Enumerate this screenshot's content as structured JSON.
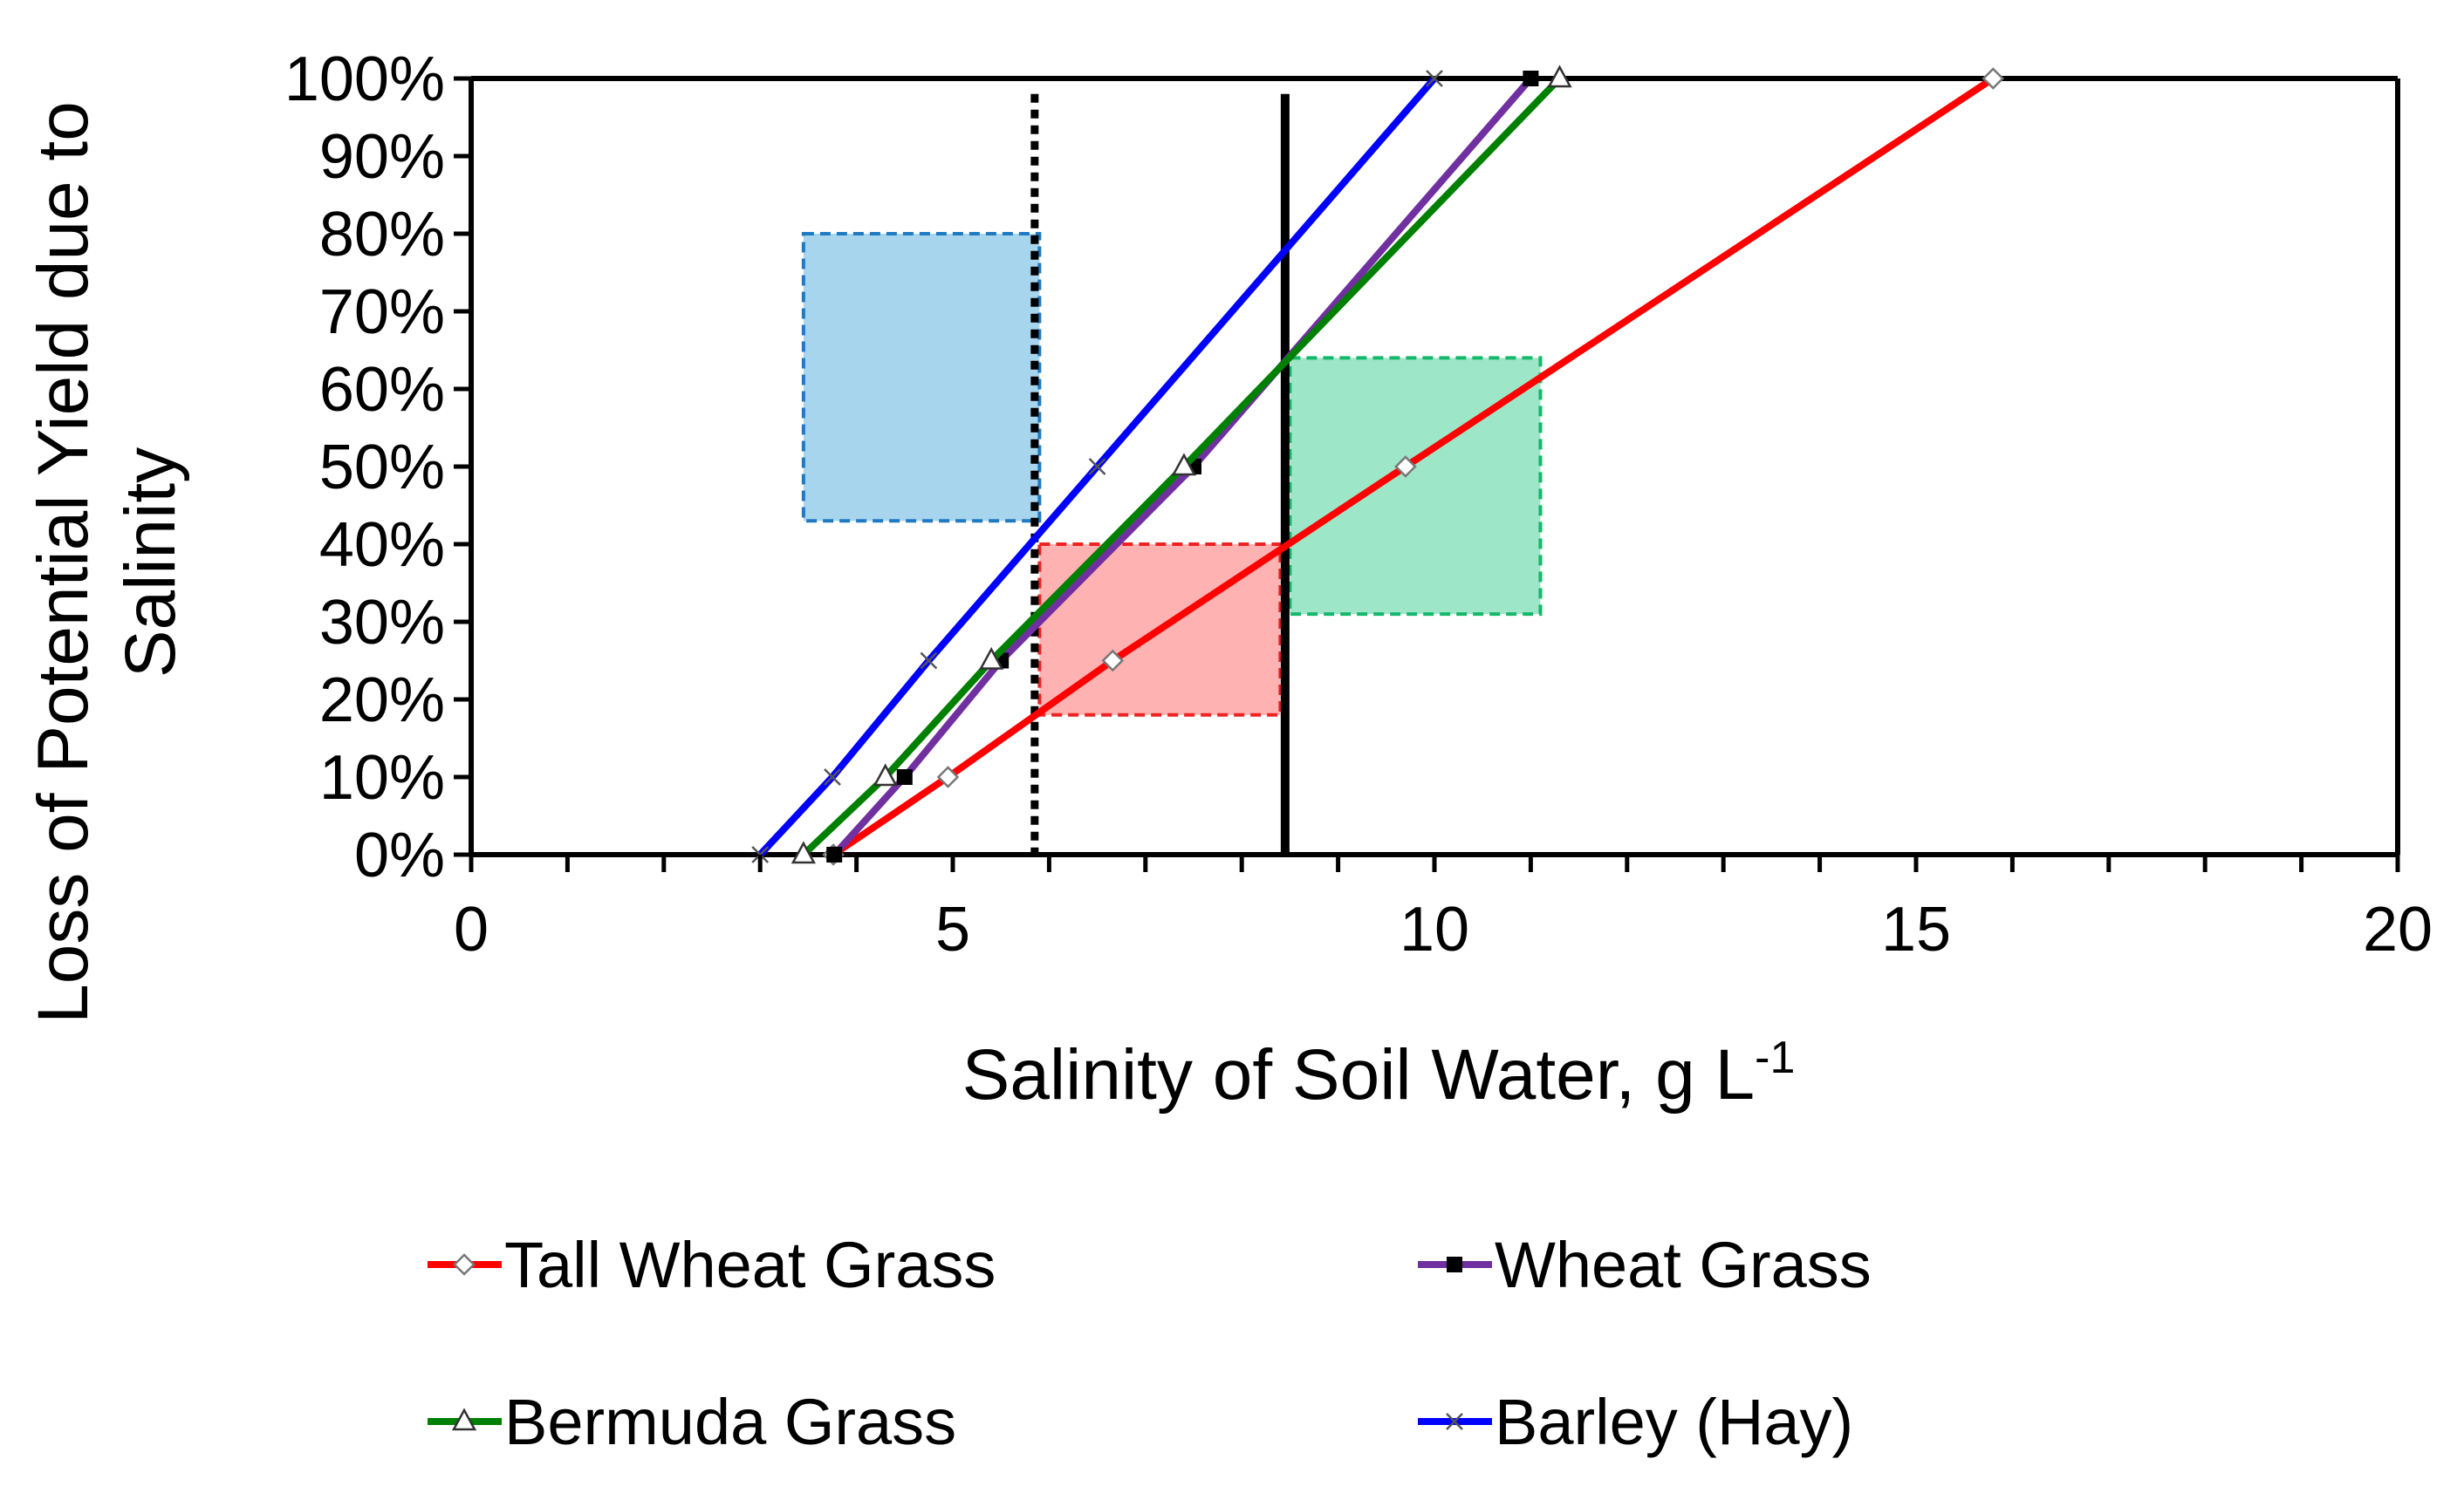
{
  "chart_data": {
    "type": "line",
    "title": "",
    "xlabel": "Salinity of Soil Water, g L",
    "xlabel_sup": "-1",
    "ylabel": "Loss of Potential Yield due to Salinity",
    "ylabel_lines": [
      "Loss of Potential Yield due to",
      "Salinity"
    ],
    "xlim": [
      0,
      20
    ],
    "ylim": [
      0,
      100
    ],
    "x_ticks": [
      0,
      5,
      10,
      15,
      20
    ],
    "x_tick_labels": [
      "0",
      "5",
      "10",
      "15",
      "20"
    ],
    "y_ticks": [
      0,
      10,
      20,
      30,
      40,
      50,
      60,
      70,
      80,
      90,
      100
    ],
    "y_tick_labels": [
      "0%",
      "10%",
      "20%",
      "30%",
      "40%",
      "50%",
      "60%",
      "70%",
      "80%",
      "90%",
      "100%"
    ],
    "legend_position": "bottom",
    "series": [
      {
        "name": "Tall Wheat Grass",
        "color": "#ff0000",
        "marker": "diamond-open",
        "x": [
          3.76,
          4.95,
          6.66,
          9.7,
          15.8
        ],
        "y": [
          0,
          10,
          25,
          50,
          100
        ]
      },
      {
        "name": "Wheat Grass",
        "color": "#7030a0",
        "marker": "square-filled",
        "x": [
          3.77,
          4.5,
          5.5,
          7.5,
          11.0
        ],
        "y": [
          0,
          10,
          25,
          50,
          100
        ]
      },
      {
        "name": "Bermuda Grass",
        "color": "#008000",
        "marker": "triangle-open",
        "x": [
          3.45,
          4.3,
          5.4,
          7.4,
          11.3
        ],
        "y": [
          0,
          10,
          25,
          50,
          100
        ]
      },
      {
        "name": "Barley (Hay)",
        "color": "#0000ff",
        "marker": "x",
        "x": [
          3.0,
          3.75,
          4.75,
          6.5,
          10.0
        ],
        "y": [
          0,
          10,
          25,
          50,
          100
        ]
      }
    ],
    "reference_lines": [
      {
        "name": "dotted-threshold",
        "x": 5.85,
        "style": "dotted",
        "color": "#000000",
        "y_top": 98
      },
      {
        "name": "solid-threshold",
        "x": 8.45,
        "style": "solid",
        "color": "#000000",
        "y_top": 98
      }
    ],
    "shaded_regions": [
      {
        "name": "blue-box",
        "x": [
          3.45,
          5.9
        ],
        "y": [
          43,
          80
        ],
        "fill": "#a8d5ee",
        "stroke": "#1f7ac2"
      },
      {
        "name": "red-box",
        "x": [
          5.9,
          8.4
        ],
        "y": [
          18,
          40
        ],
        "fill": "#ffb2b2",
        "stroke": "#ee2222"
      },
      {
        "name": "green-box",
        "x": [
          8.5,
          11.1
        ],
        "y": [
          31,
          64
        ],
        "fill": "#9ee6c8",
        "stroke": "#14b86a"
      }
    ]
  }
}
